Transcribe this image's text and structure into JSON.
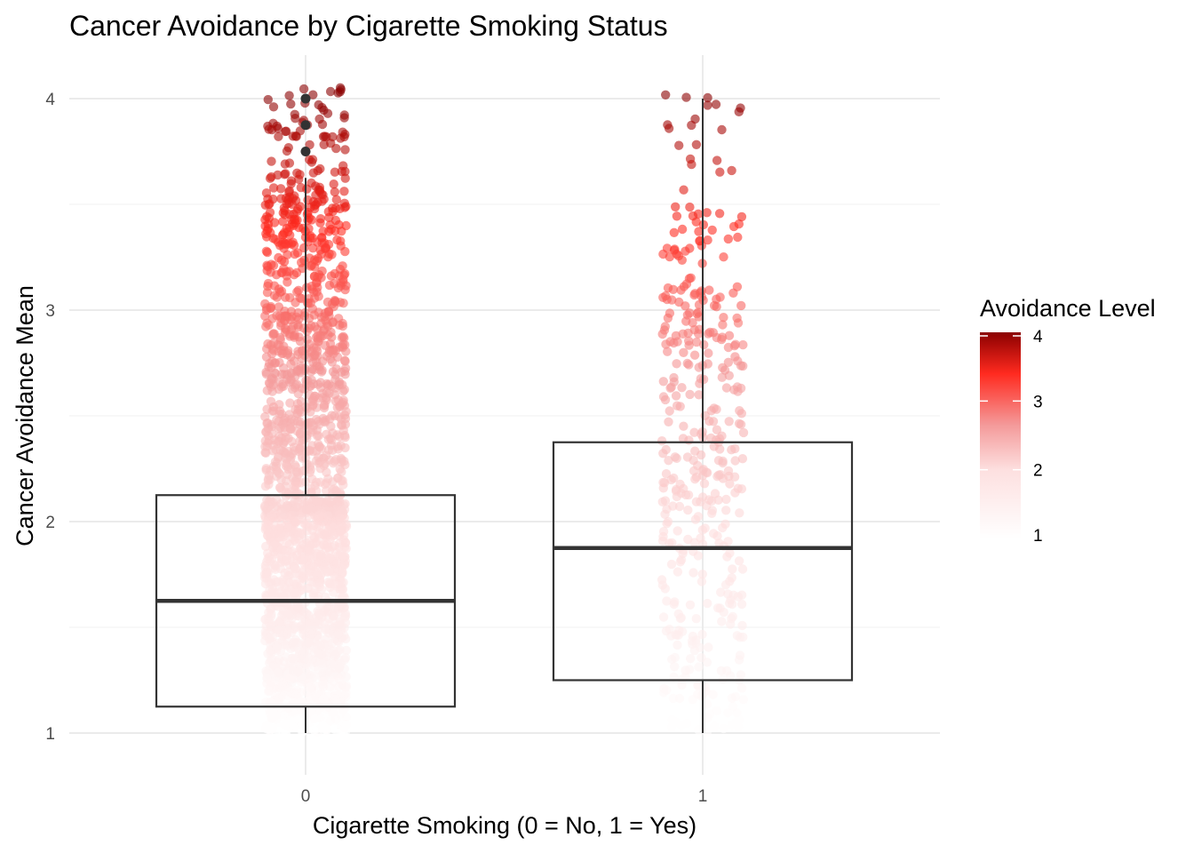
{
  "chart_data": {
    "type": "boxplot",
    "title": "Cancer Avoidance by Cigarette Smoking Status",
    "xlabel": "Cigarette Smoking (0 = No, 1 = Yes)",
    "ylabel": "Cancer Avoidance Mean",
    "categories": [
      "0",
      "1"
    ],
    "ylim": [
      0.8,
      4.15
    ],
    "y_ticks": [
      "1",
      "2",
      "3",
      "4"
    ],
    "grid": true,
    "legend_placement": "right",
    "boxplots": [
      {
        "category": "0",
        "lower_whisker": 1.0,
        "q1": 1.125,
        "median": 1.625,
        "q3": 2.125,
        "upper_whisker": 3.625,
        "outliers": [
          3.75,
          3.875,
          4.0
        ]
      },
      {
        "category": "1",
        "lower_whisker": 1.0,
        "q1": 1.25,
        "median": 1.875,
        "q3": 2.375,
        "upper_whisker": 4.0,
        "outliers": []
      }
    ],
    "jitter_points": {
      "category_0_approx_count": 2100,
      "category_1_approx_count": 420,
      "range": [
        1.0,
        4.0
      ],
      "note_jitter": "points spread horizontally around each category"
    },
    "legend": {
      "title": "Avoidance Level",
      "labels": [
        "4",
        "3",
        "2",
        "1"
      ],
      "range": [
        1,
        4
      ],
      "colors": [
        "#ffffff",
        "#f7b3b3",
        "#ff3b30",
        "#8b0000"
      ]
    }
  }
}
